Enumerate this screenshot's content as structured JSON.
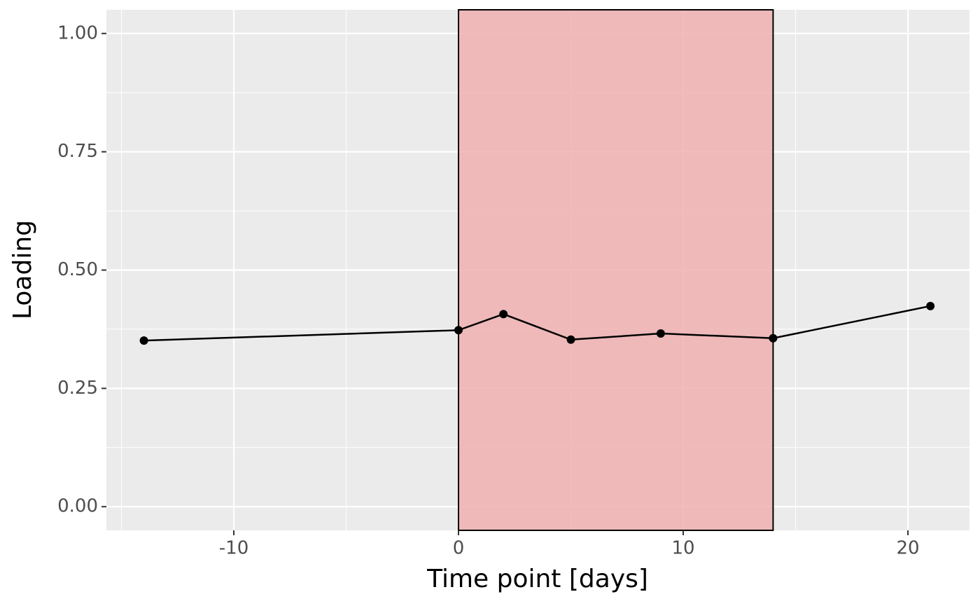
{
  "chart_data": {
    "type": "line",
    "xlabel": "Time point [days]",
    "ylabel": "Loading",
    "x": [
      -14,
      0,
      2,
      5,
      9,
      14,
      21
    ],
    "series": [
      {
        "color": "#000000",
        "values": [
          0.351,
          0.373,
          0.407,
          0.353,
          0.366,
          0.356,
          0.424
        ]
      }
    ],
    "shade": {
      "xmin": 0,
      "xmax": 14,
      "color": "#f0b0b0"
    },
    "xlim": [
      -15.67,
      22.74
    ],
    "xticks": [
      -10,
      0,
      10,
      20
    ],
    "x_minor_ticks": [
      -15,
      -5,
      5,
      15
    ],
    "ylim": [
      -0.05,
      1.05
    ],
    "yticks": [
      {
        "value": 0,
        "label": "0.00"
      },
      {
        "value": 0.25,
        "label": "0.25"
      },
      {
        "value": 0.5,
        "label": "0.50"
      },
      {
        "value": 0.75,
        "label": "0.75"
      },
      {
        "value": 1,
        "label": "1.00"
      }
    ],
    "y_minor_ticks": [
      0.125,
      0.375,
      0.625,
      0.875
    ],
    "grid": true
  }
}
